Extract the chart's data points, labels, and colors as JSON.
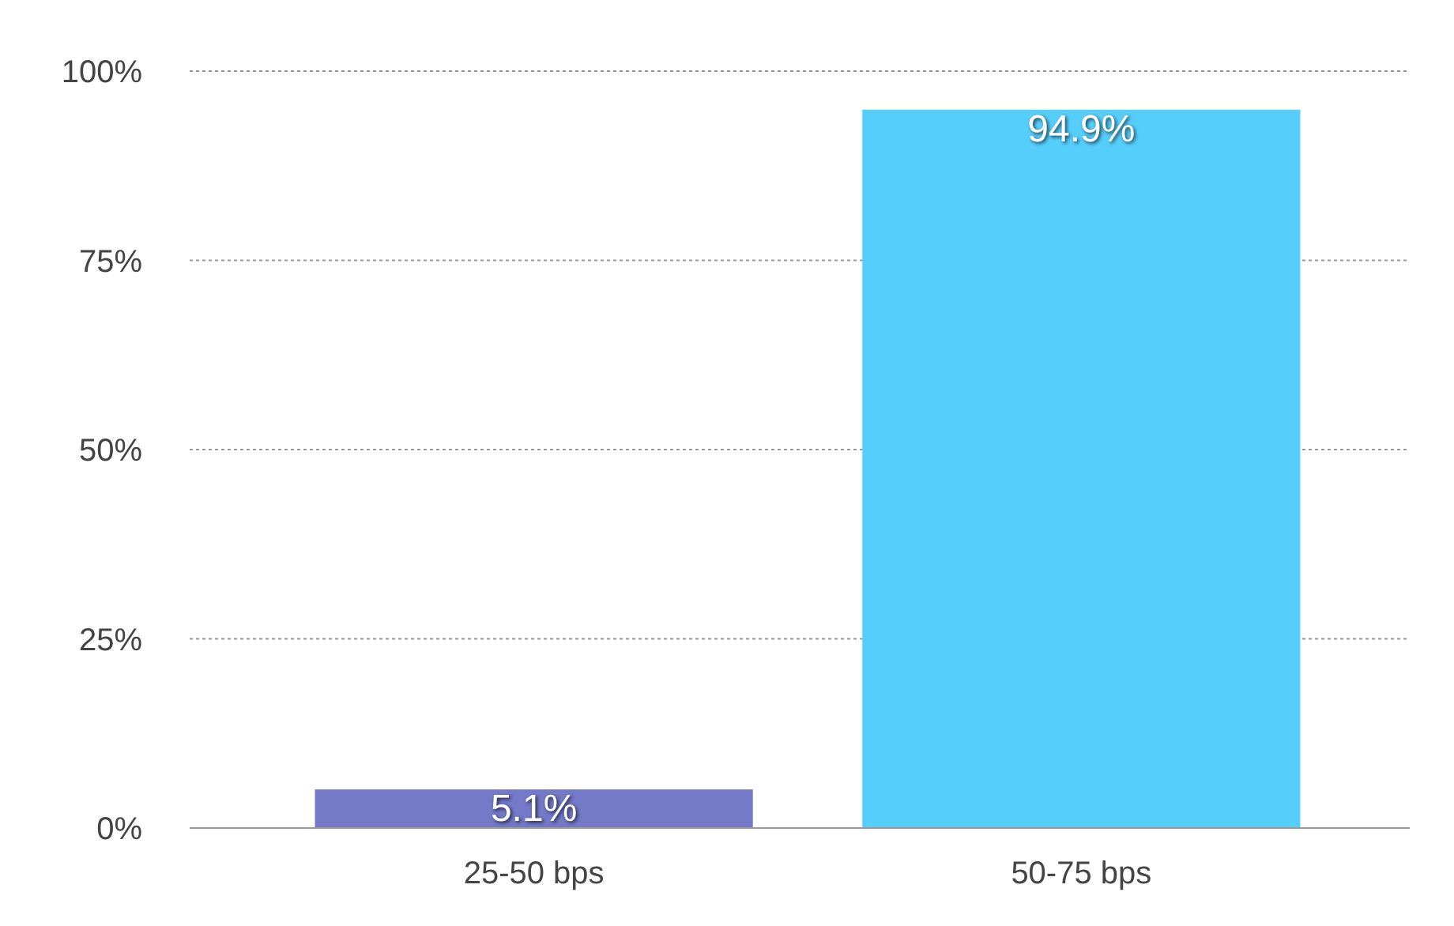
{
  "chart_data": {
    "type": "bar",
    "categories": [
      "25-50 bps",
      "50-75 bps"
    ],
    "values": [
      5.1,
      94.9
    ],
    "colors": [
      "#7479c8",
      "#56cefc"
    ],
    "value_labels": [
      "5.1%",
      "94.9%"
    ],
    "ylim": [
      0,
      100
    ],
    "yticks": [
      {
        "value": 0,
        "label": "0%"
      },
      {
        "value": 25,
        "label": "25%"
      },
      {
        "value": 50,
        "label": "50%"
      },
      {
        "value": 75,
        "label": "75%"
      },
      {
        "value": 100,
        "label": "100%"
      }
    ],
    "grid": "y"
  }
}
